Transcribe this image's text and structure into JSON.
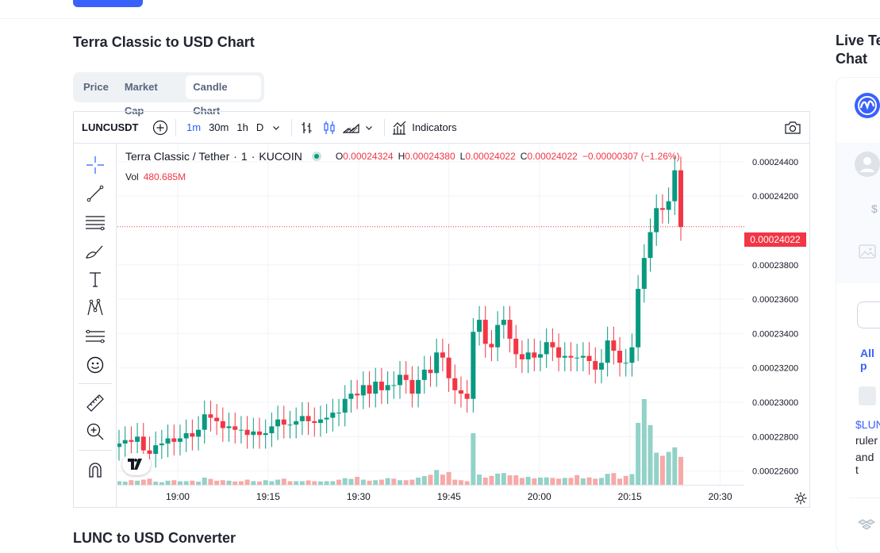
{
  "page": {
    "chart_title": "Terra Classic to USD Chart",
    "converter_title": "LUNC to USD Converter"
  },
  "tabs": [
    {
      "label": "Price",
      "active": false
    },
    {
      "label": "Market Cap",
      "active": false
    },
    {
      "label": "Candle Chart",
      "active": true
    }
  ],
  "toolbar": {
    "symbol": "LUNCUSDT",
    "timeframes": [
      "1m",
      "30m",
      "1h",
      "D"
    ],
    "active_timeframe": "1m",
    "indicators_label": "Indicators"
  },
  "legend": {
    "pair": "Terra Classic / Tether",
    "interval": "1",
    "exchange": "KUCOIN",
    "o_label": "O",
    "open": "0.00024324",
    "h_label": "H",
    "high": "0.00024380",
    "l_label": "L",
    "low": "0.00024022",
    "c_label": "C",
    "close": "0.00024022",
    "change": "−0.00000307 (−1.26%)",
    "vol_label": "Vol",
    "vol_value": "480.685M"
  },
  "current_price": "0.00024022",
  "colors": {
    "up": "#089981",
    "down": "#f23645",
    "vol_up": "#92d2c8",
    "vol_down": "#f7a9a7",
    "accent": "#2962ff"
  },
  "chart_data": {
    "type": "candlestick",
    "title": "Terra Classic / Tether · 1 · KUCOIN",
    "x_ticks": [
      "19:00",
      "19:15",
      "19:30",
      "19:45",
      "20:00",
      "20:15",
      "20:30"
    ],
    "y_ticks": [
      "0.00024400",
      "0.00024200",
      "0.00023800",
      "0.00023600",
      "0.00023400",
      "0.00023200",
      "0.00023000",
      "0.00022800",
      "0.00022600"
    ],
    "ylim": [
      0.0002252,
      0.0002445
    ],
    "x_start": "18:50",
    "x_end": "20:34",
    "close": [
      0.0002276,
      0.0002278,
      0.0002277,
      0.000228,
      0.0002272,
      0.000227,
      0.0002275,
      0.0002276,
      0.0002279,
      0.0002277,
      0.0002279,
      0.0002282,
      0.000228,
      0.0002284,
      0.0002293,
      0.0002291,
      0.0002289,
      0.0002285,
      0.0002286,
      0.0002284,
      0.0002284,
      0.0002281,
      0.0002283,
      0.0002281,
      0.0002282,
      0.0002286,
      0.000229,
      0.0002287,
      0.0002287,
      0.0002289,
      0.0002292,
      0.0002289,
      0.0002288,
      0.000229,
      0.0002291,
      0.0002294,
      0.0002294,
      0.0002302,
      0.0002305,
      0.0002304,
      0.000231,
      0.0002305,
      0.0002312,
      0.0002307,
      0.000231,
      0.000231,
      0.0002316,
      0.0002313,
      0.0002305,
      0.0002313,
      0.0002319,
      0.0002317,
      0.0002329,
      0.0002326,
      0.0002314,
      0.0002307,
      0.0002305,
      0.0002302,
      0.0002341,
      0.0002348,
      0.0002334,
      0.0002332,
      0.0002345,
      0.0002348,
      0.0002337,
      0.0002328,
      0.0002325,
      0.0002329,
      0.0002326,
      0.0002328,
      0.0002335,
      0.0002332,
      0.0002326,
      0.0002327,
      0.0002326,
      0.0002326,
      0.0002327,
      0.0002324,
      0.0002319,
      0.0002323,
      0.0002336,
      0.000233,
      0.0002323,
      0.0002323,
      0.0002332,
      0.0002366,
      0.0002384,
      0.0002399,
      0.0002413,
      0.0002412,
      0.0002417,
      0.0002435,
      0.0002402
    ],
    "up": [
      true,
      true,
      false,
      true,
      false,
      false,
      true,
      true,
      true,
      false,
      true,
      true,
      false,
      true,
      true,
      false,
      false,
      false,
      true,
      false,
      false,
      false,
      true,
      false,
      true,
      true,
      true,
      false,
      false,
      true,
      true,
      false,
      false,
      true,
      true,
      true,
      false,
      true,
      true,
      false,
      true,
      false,
      true,
      false,
      true,
      false,
      true,
      false,
      false,
      true,
      true,
      false,
      true,
      false,
      false,
      false,
      false,
      false,
      true,
      true,
      false,
      false,
      true,
      true,
      false,
      false,
      false,
      true,
      false,
      true,
      true,
      false,
      false,
      true,
      false,
      false,
      true,
      false,
      false,
      true,
      true,
      false,
      false,
      false,
      true,
      true,
      true,
      true,
      true,
      false,
      true,
      true,
      false
    ],
    "volume_millions": [
      61,
      53,
      78,
      70,
      87,
      104,
      52,
      43,
      69,
      78,
      59,
      61,
      70,
      52,
      122,
      100,
      69,
      78,
      70,
      56,
      61,
      87,
      61,
      56,
      78,
      61,
      87,
      104,
      61,
      61,
      61,
      74,
      61,
      56,
      61,
      61,
      87,
      113,
      100,
      135,
      87,
      69,
      78,
      87,
      113,
      104,
      78,
      78,
      87,
      122,
      148,
      170,
      252,
      174,
      217,
      87,
      78,
      61,
      881,
      174,
      122,
      152,
      191,
      200,
      161,
      161,
      117,
      135,
      109,
      122,
      126,
      117,
      104,
      117,
      117,
      165,
      109,
      126,
      104,
      117,
      187,
      200,
      104,
      152,
      183,
      1057,
      1463,
      1019,
      548,
      495,
      561,
      639,
      476
    ]
  },
  "sidebar": {
    "title": "Live Te\nChat",
    "dollar": "$",
    "all_label": "All p",
    "post_tag": "$LUN",
    "post_line1": "ruler",
    "post_line2": "and t"
  }
}
